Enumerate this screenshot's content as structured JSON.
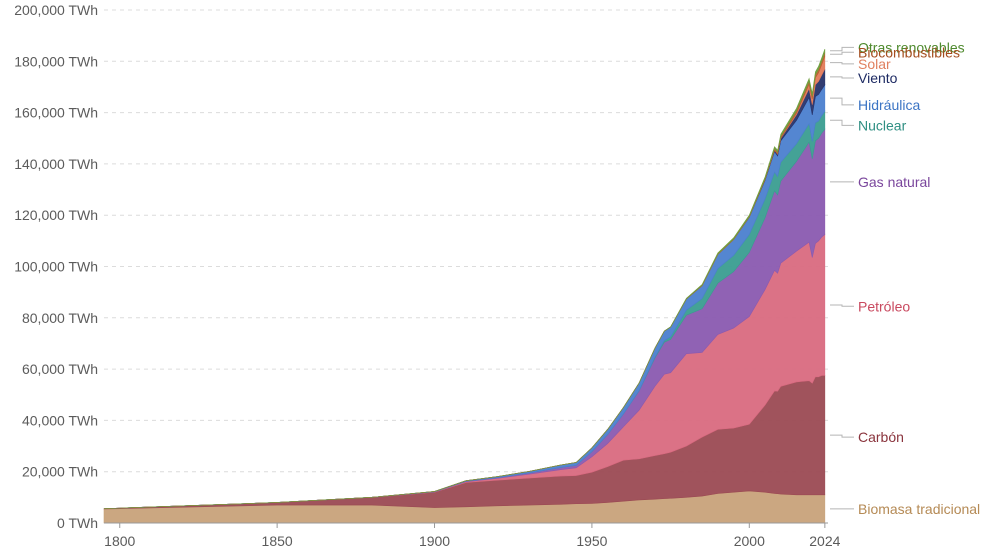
{
  "chart_data": {
    "type": "area",
    "stacked": true,
    "y_unit": "TWh",
    "ylim": [
      0,
      200000
    ],
    "yticks": [
      0,
      20000,
      40000,
      60000,
      80000,
      100000,
      120000,
      140000,
      160000,
      180000,
      200000
    ],
    "ytick_labels": [
      "0 TWh",
      "20,000 TWh",
      "40,000 TWh",
      "60,000 TWh",
      "80,000 TWh",
      "100,000 TWh",
      "120,000 TWh",
      "140,000 TWh",
      "160,000 TWh",
      "180,000 TWh",
      "200,000 TWh"
    ],
    "xlim": [
      1795,
      2025
    ],
    "xticks": [
      1800,
      1850,
      1900,
      1950,
      2000,
      2024
    ],
    "xtick_labels": [
      "1800",
      "1850",
      "1900",
      "1950",
      "2000",
      "2024"
    ],
    "grid": "horizontal dashed",
    "legend_placement": "right, inline labels",
    "x": [
      1795,
      1800,
      1850,
      1880,
      1900,
      1910,
      1920,
      1930,
      1940,
      1945,
      1950,
      1955,
      1960,
      1965,
      1970,
      1973,
      1975,
      1980,
      1985,
      1990,
      1995,
      2000,
      2005,
      2008,
      2009,
      2010,
      2015,
      2019,
      2020,
      2021,
      2022,
      2023,
      2024
    ],
    "series": [
      {
        "name": "Biomasa tradicional",
        "color": "#c8a27a",
        "values": [
          5500,
          5600,
          7000,
          7000,
          6000,
          6300,
          6700,
          7000,
          7300,
          7500,
          7600,
          8000,
          8500,
          9000,
          9300,
          9500,
          9600,
          10000,
          10500,
          11500,
          12000,
          12500,
          12000,
          11500,
          11400,
          11300,
          11000,
          11000,
          11000,
          11000,
          11000,
          11000,
          11000
        ]
      },
      {
        "name": "Carbón",
        "color": "#9b4a53",
        "values": [
          100,
          200,
          1000,
          3000,
          6000,
          9500,
          10000,
          10500,
          11000,
          11000,
          12200,
          14000,
          16000,
          16000,
          17000,
          17500,
          18000,
          20000,
          23000,
          25000,
          25000,
          26000,
          34000,
          40000,
          40000,
          42000,
          44000,
          44500,
          43500,
          46000,
          46000,
          46500,
          46500
        ]
      },
      {
        "name": "Petróleo",
        "color": "#d96a80",
        "values": [
          0,
          0,
          0,
          0,
          100,
          300,
          700,
          1500,
          2500,
          3000,
          6000,
          9000,
          13000,
          19000,
          27000,
          31000,
          31000,
          36000,
          33000,
          37000,
          39000,
          42000,
          45000,
          47000,
          46000,
          48000,
          51000,
          54000,
          49000,
          52000,
          53000,
          54000,
          55000
        ]
      },
      {
        "name": "Gas natural",
        "color": "#8a5ab0",
        "values": [
          0,
          0,
          0,
          0,
          100,
          200,
          300,
          500,
          800,
          1000,
          2000,
          3500,
          5000,
          7500,
          11000,
          12500,
          13000,
          15000,
          17000,
          20000,
          22000,
          25000,
          28000,
          31000,
          30500,
          32000,
          35000,
          39000,
          38500,
          40000,
          40000,
          40500,
          41000
        ]
      },
      {
        "name": "Nuclear",
        "color": "#3a9d90",
        "values": [
          0,
          0,
          0,
          0,
          0,
          0,
          0,
          0,
          0,
          0,
          0,
          0,
          0,
          100,
          300,
          600,
          1000,
          2000,
          4000,
          5700,
          6300,
          7000,
          7300,
          7300,
          7200,
          7300,
          6900,
          7200,
          6800,
          7000,
          6700,
          6800,
          7000
        ]
      },
      {
        "name": "Hidráulica",
        "color": "#4b7fcf",
        "values": [
          0,
          0,
          0,
          0,
          100,
          200,
          400,
          600,
          1000,
          1100,
          1500,
          2000,
          2500,
          3000,
          3500,
          3700,
          3800,
          4300,
          5000,
          5500,
          6200,
          6700,
          7300,
          8000,
          8000,
          8400,
          9100,
          10200,
          10300,
          10300,
          10400,
          10200,
          10300
        ]
      },
      {
        "name": "Viento",
        "color": "#27336a",
        "values": [
          0,
          0,
          0,
          0,
          0,
          0,
          0,
          0,
          0,
          0,
          0,
          0,
          0,
          0,
          0,
          0,
          0,
          0,
          0,
          0,
          0,
          100,
          300,
          500,
          700,
          900,
          2200,
          3500,
          4000,
          4600,
          5100,
          5600,
          6200
        ]
      },
      {
        "name": "Solar",
        "color": "#e37b5a",
        "values": [
          0,
          0,
          0,
          0,
          0,
          0,
          0,
          0,
          0,
          0,
          0,
          0,
          0,
          0,
          0,
          0,
          0,
          0,
          0,
          0,
          0,
          0,
          0,
          50,
          100,
          100,
          600,
          1700,
          2200,
          2700,
          3400,
          4100,
          5000
        ]
      },
      {
        "name": "Biocombustibles",
        "color": "#b5632f",
        "values": [
          0,
          0,
          0,
          0,
          0,
          0,
          0,
          0,
          0,
          0,
          0,
          0,
          0,
          0,
          0,
          0,
          0,
          100,
          200,
          200,
          200,
          250,
          400,
          650,
          700,
          800,
          1000,
          1200,
          1100,
          1200,
          1300,
          1400,
          1500
        ]
      },
      {
        "name": "Otras renovables",
        "color": "#6f9f3e",
        "values": [
          0,
          0,
          0,
          0,
          0,
          0,
          0,
          0,
          0,
          0,
          0,
          0,
          0,
          0,
          0,
          0,
          100,
          200,
          300,
          400,
          450,
          500,
          600,
          700,
          720,
          750,
          900,
          1000,
          1050,
          1100,
          1150,
          1200,
          1250
        ]
      }
    ],
    "labels": [
      {
        "series": "Otras renovables",
        "text": "Otras renovables",
        "color": "#4f8a2e",
        "anchor": 185400
      },
      {
        "series": "Biocombustibles",
        "text": "Biocombustibles",
        "color": "#a44d1e",
        "anchor": 183500
      },
      {
        "series": "Solar",
        "text": "Solar",
        "color": "#e0805f",
        "anchor": 179000
      },
      {
        "series": "Viento",
        "text": "Viento",
        "color": "#1d2a63",
        "anchor": 173500
      },
      {
        "series": "Hidráulica",
        "text": "Hidráulica",
        "color": "#3b74c4",
        "anchor": 163000
      },
      {
        "series": "Nuclear",
        "text": "Nuclear",
        "color": "#2f8f83",
        "anchor": 155000
      },
      {
        "series": "Gas natural",
        "text": "Gas natural",
        "color": "#7a469c",
        "anchor": 133000
      },
      {
        "series": "Petróleo",
        "text": "Petróleo",
        "color": "#c9495f",
        "anchor": 84500
      },
      {
        "series": "Carbón",
        "text": "Carbón",
        "color": "#8a343d",
        "anchor": 33500
      },
      {
        "series": "Biomasa tradicional",
        "text": "Biomasa tradicional",
        "color": "#b58a55",
        "anchor": 5500
      }
    ]
  }
}
